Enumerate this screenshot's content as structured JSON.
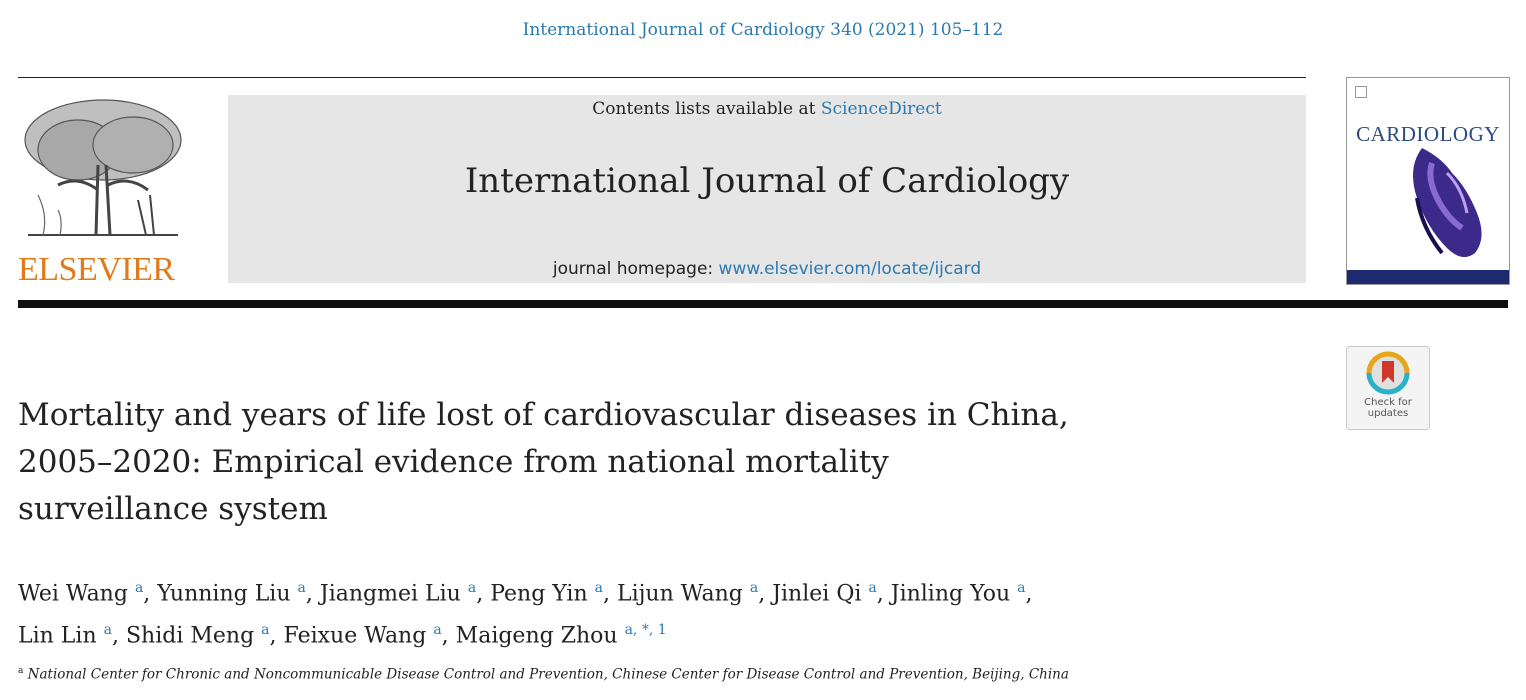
{
  "citation": "International Journal of Cardiology 340 (2021) 105–112",
  "header": {
    "publisher": "ELSEVIER",
    "contents_prefix": "Contents lists available at ",
    "contents_link": "ScienceDirect",
    "journal_name": "International Journal of Cardiology",
    "homepage_prefix": "journal homepage: ",
    "homepage_link": "www.elsevier.com/locate/ijcard",
    "cover_title": "CARDIOLOGY"
  },
  "check_updates": {
    "line1": "Check for",
    "line2": "updates"
  },
  "article": {
    "title_lines": [
      "Mortality and years of life lost of cardiovascular diseases in China,",
      "2005–2020: Empirical evidence from national mortality",
      "surveillance system"
    ]
  },
  "authors": [
    {
      "name": "Wei Wang",
      "sup": "a"
    },
    {
      "name": "Yunning Liu",
      "sup": "a"
    },
    {
      "name": "Jiangmei Liu",
      "sup": "a"
    },
    {
      "name": "Peng Yin",
      "sup": "a"
    },
    {
      "name": "Lijun Wang",
      "sup": "a"
    },
    {
      "name": "Jinlei Qi",
      "sup": "a"
    },
    {
      "name": "Jinling You",
      "sup": "a"
    },
    {
      "name": "Lin Lin",
      "sup": "a"
    },
    {
      "name": "Shidi Meng",
      "sup": "a"
    },
    {
      "name": "Feixue Wang",
      "sup": "a"
    },
    {
      "name": "Maigeng Zhou",
      "sup": "a, *, 1"
    }
  ],
  "affiliation": {
    "mark": "a",
    "text": "National Center for Chronic and Noncommunicable Disease Control and Prevention, Chinese Center for Disease Control and Prevention, Beijing, China"
  },
  "colors": {
    "link": "#2a7ab0",
    "publisher": "#e07a1a",
    "masthead_bg": "#e6e6e6"
  }
}
